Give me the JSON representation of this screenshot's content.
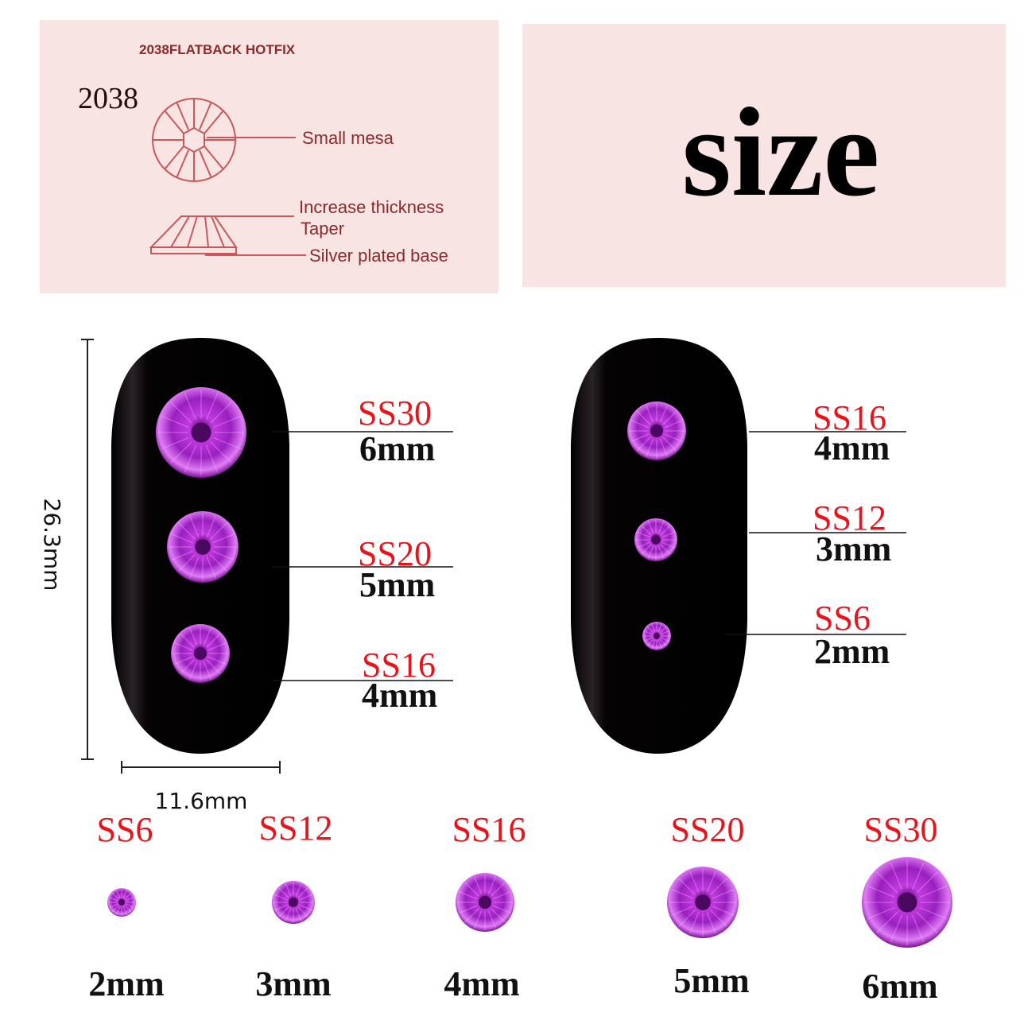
{
  "diagram": {
    "heading": "2038FLATBACK HOTFIX",
    "model": "2038",
    "labels": [
      "Small mesa",
      "Increase thickness",
      "Taper",
      "Silver plated base"
    ]
  },
  "size_title": "size",
  "dimensions": {
    "height": "26.3mm",
    "width": "11.6mm"
  },
  "nail_left": [
    {
      "code": "SS30",
      "mm": "6mm"
    },
    {
      "code": "SS20",
      "mm": "5mm"
    },
    {
      "code": "SS16",
      "mm": "4mm"
    }
  ],
  "nail_right": [
    {
      "code": "SS16",
      "mm": "4mm"
    },
    {
      "code": "SS12",
      "mm": "3mm"
    },
    {
      "code": "SS6",
      "mm": "2mm"
    }
  ],
  "size_row": [
    {
      "code": "SS6",
      "mm": "2mm"
    },
    {
      "code": "SS12",
      "mm": "3mm"
    },
    {
      "code": "SS16",
      "mm": "4mm"
    },
    {
      "code": "SS20",
      "mm": "5mm"
    },
    {
      "code": "SS30",
      "mm": "6mm"
    }
  ],
  "colors": {
    "panel": "#f9e4e4",
    "label_red": "#e8141c",
    "gem": "#a81fc4",
    "nail": "#0b0709",
    "diagram_line": "#c9585a"
  }
}
